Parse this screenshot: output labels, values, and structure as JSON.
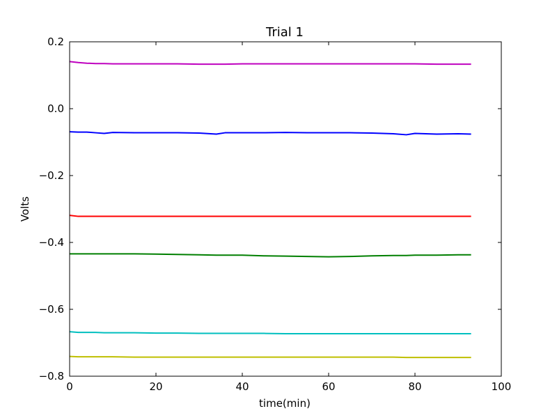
{
  "chart_data": {
    "type": "line",
    "title": "Trial 1",
    "xlabel": "time(min)",
    "ylabel": "Volts",
    "xlim": [
      0,
      100
    ],
    "ylim": [
      -0.8,
      0.2
    ],
    "x_ticks": [
      0,
      20,
      40,
      60,
      80,
      100
    ],
    "x_tick_labels": [
      "0",
      "20",
      "40",
      "60",
      "80",
      "100"
    ],
    "y_ticks": [
      0.2,
      0.0,
      -0.2,
      -0.4,
      -0.6,
      -0.8
    ],
    "y_tick_labels": [
      "0.2",
      "0.0",
      "−0.2",
      "−0.4",
      "−0.6",
      "−0.8"
    ],
    "grid": false,
    "x": [
      0,
      2,
      4,
      6,
      8,
      10,
      15,
      20,
      25,
      30,
      34,
      36,
      40,
      45,
      50,
      55,
      60,
      65,
      70,
      75,
      78,
      80,
      85,
      90,
      93
    ],
    "series": [
      {
        "color": "#bf00bf",
        "values": [
          0.141,
          0.138,
          0.136,
          0.135,
          0.135,
          0.134,
          0.134,
          0.134,
          0.134,
          0.133,
          0.133,
          0.133,
          0.134,
          0.134,
          0.134,
          0.134,
          0.134,
          0.134,
          0.134,
          0.134,
          0.134,
          0.134,
          0.133,
          0.133,
          0.133
        ]
      },
      {
        "color": "#0000ff",
        "values": [
          -0.069,
          -0.07,
          -0.07,
          -0.072,
          -0.074,
          -0.071,
          -0.072,
          -0.072,
          -0.072,
          -0.073,
          -0.076,
          -0.072,
          -0.072,
          -0.072,
          -0.071,
          -0.072,
          -0.072,
          -0.072,
          -0.073,
          -0.075,
          -0.078,
          -0.074,
          -0.076,
          -0.075,
          -0.076
        ]
      },
      {
        "color": "#ff0000",
        "values": [
          -0.319,
          -0.322,
          -0.322,
          -0.322,
          -0.322,
          -0.322,
          -0.322,
          -0.322,
          -0.322,
          -0.322,
          -0.322,
          -0.322,
          -0.322,
          -0.322,
          -0.322,
          -0.322,
          -0.322,
          -0.322,
          -0.322,
          -0.322,
          -0.322,
          -0.322,
          -0.322,
          -0.322,
          -0.322
        ]
      },
      {
        "color": "#007f00",
        "values": [
          -0.434,
          -0.434,
          -0.434,
          -0.434,
          -0.434,
          -0.434,
          -0.434,
          -0.435,
          -0.436,
          -0.437,
          -0.438,
          -0.438,
          -0.438,
          -0.44,
          -0.441,
          -0.442,
          -0.443,
          -0.442,
          -0.44,
          -0.439,
          -0.439,
          -0.438,
          -0.438,
          -0.437,
          -0.437
        ]
      },
      {
        "color": "#00bfbf",
        "values": [
          -0.667,
          -0.669,
          -0.669,
          -0.669,
          -0.67,
          -0.67,
          -0.67,
          -0.671,
          -0.671,
          -0.672,
          -0.672,
          -0.672,
          -0.672,
          -0.672,
          -0.673,
          -0.673,
          -0.673,
          -0.673,
          -0.673,
          -0.673,
          -0.673,
          -0.673,
          -0.673,
          -0.673,
          -0.673
        ]
      },
      {
        "color": "#bfbf00",
        "values": [
          -0.741,
          -0.742,
          -0.742,
          -0.742,
          -0.742,
          -0.742,
          -0.743,
          -0.743,
          -0.743,
          -0.743,
          -0.743,
          -0.743,
          -0.743,
          -0.743,
          -0.743,
          -0.743,
          -0.743,
          -0.743,
          -0.743,
          -0.743,
          -0.744,
          -0.744,
          -0.744,
          -0.744,
          -0.744
        ]
      }
    ]
  }
}
